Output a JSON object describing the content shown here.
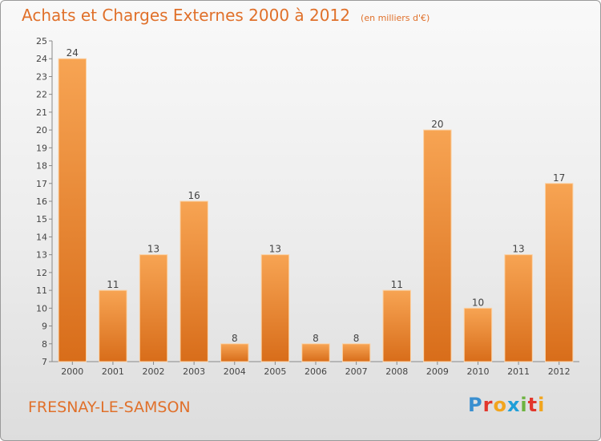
{
  "title": "Achats et Charges Externes 2000 à 2012",
  "unit": "(en milliers d'€)",
  "place_name": "FRESNAY-LE-SAMSON",
  "logo": {
    "letters": [
      "P",
      "r",
      "o",
      "x",
      "i",
      "t",
      "i"
    ],
    "colors": [
      "#3a8fd0",
      "#e2362b",
      "#f2a51e",
      "#1f9fd8",
      "#6cb33f",
      "#e2362b",
      "#f2a51e"
    ]
  },
  "colors": {
    "bar_light": "#f7a453",
    "bar_dark": "#d86d1a",
    "text": "#e0702a",
    "axis_text": "#444444"
  },
  "chart_data": {
    "type": "bar",
    "categories": [
      "2000",
      "2001",
      "2002",
      "2003",
      "2004",
      "2005",
      "2006",
      "2007",
      "2008",
      "2009",
      "2010",
      "2011",
      "2012"
    ],
    "values": [
      24,
      11,
      13,
      16,
      8,
      13,
      8,
      8,
      11,
      20,
      10,
      13,
      17
    ],
    "ylim": [
      7,
      25
    ],
    "yticks": [
      7,
      8,
      9,
      10,
      11,
      12,
      13,
      14,
      15,
      16,
      17,
      18,
      19,
      20,
      21,
      22,
      23,
      24,
      25
    ],
    "grid": false,
    "xlabel": "",
    "ylabel": ""
  }
}
